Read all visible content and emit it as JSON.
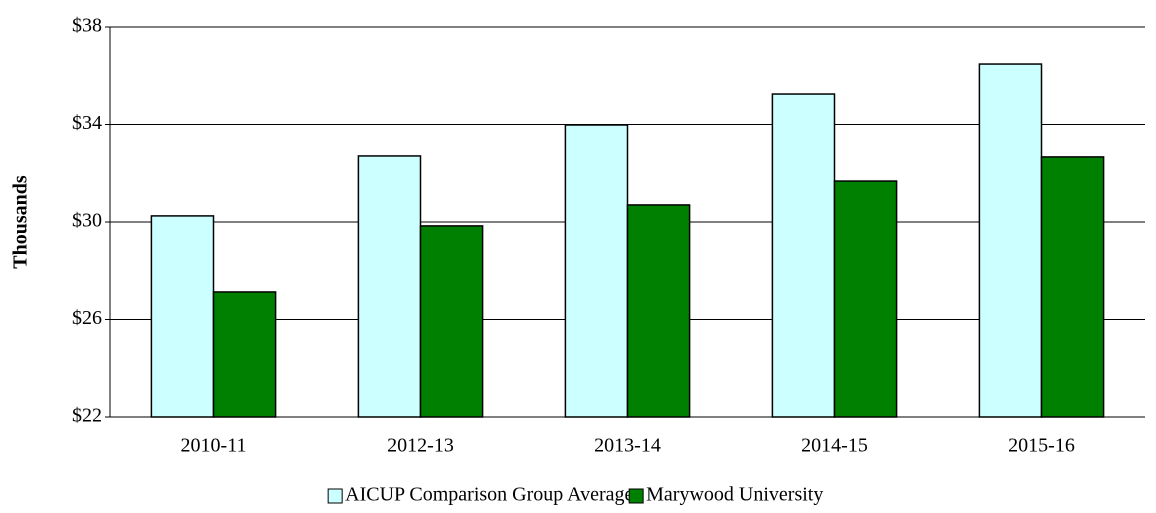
{
  "chart_data": {
    "type": "bar",
    "ylabel": "Thousands",
    "categories": [
      "2010-11",
      "2012-13",
      "2013-14",
      "2014-15",
      "2015-16"
    ],
    "series": [
      {
        "name": "AICUP Comparison Group Average",
        "color": "#ccffff",
        "values": [
          30.25,
          32.71,
          33.98,
          35.25,
          36.48
        ]
      },
      {
        "name": "Marywood University",
        "color": "#008000",
        "values": [
          27.13,
          29.84,
          30.7,
          31.68,
          32.67
        ]
      }
    ],
    "ylim": [
      22,
      38
    ],
    "yticks": [
      {
        "value": 22,
        "label": "$22"
      },
      {
        "value": 26,
        "label": "$26"
      },
      {
        "value": 30,
        "label": "$30"
      },
      {
        "value": 34,
        "label": "$34"
      },
      {
        "value": 38,
        "label": "$38"
      }
    ],
    "grid": true,
    "legend": "bottom"
  }
}
